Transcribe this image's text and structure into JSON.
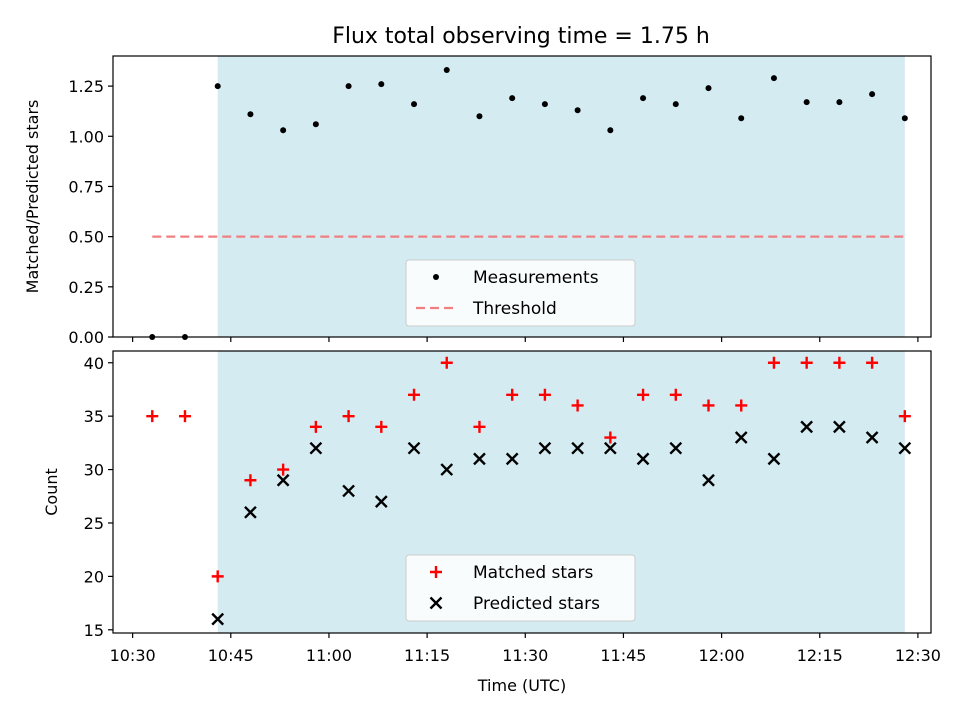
{
  "title": "Flux total observing time = 1.75 h",
  "colors": {
    "span": "#add8e6",
    "measurement": "#000000",
    "threshold": "#f08080",
    "matched": "#ff0000",
    "predicted": "#000000"
  },
  "chart_data": [
    {
      "type": "scatter",
      "ylabel": "Matched/Predicted stars",
      "ylim": [
        0,
        1.4
      ],
      "y_ticks": [
        "0.00",
        "0.25",
        "0.50",
        "0.75",
        "1.00",
        "1.25"
      ],
      "y_tick_values": [
        0,
        0.25,
        0.5,
        0.75,
        1.0,
        1.25
      ],
      "x_ticks": [
        "10:30",
        "10:45",
        "11:00",
        "11:15",
        "11:30",
        "11:45",
        "12:00",
        "12:15",
        "12:30"
      ],
      "x_tick_values": [
        "10:30",
        "10:45",
        "11:00",
        "11:15",
        "11:30",
        "11:45",
        "12:00",
        "12:15",
        "12:30"
      ],
      "xlim": [
        "10:27",
        "12:32"
      ],
      "grid": false,
      "legend_position": "lower center",
      "shaded_span": {
        "start": "10:43",
        "end": "12:28"
      },
      "series": [
        {
          "name": "Measurements",
          "marker": "dot",
          "x": [
            "10:33",
            "10:38",
            "10:43",
            "10:48",
            "10:53",
            "10:58",
            "11:03",
            "11:08",
            "11:13",
            "11:18",
            "11:23",
            "11:28",
            "11:33",
            "11:38",
            "11:43",
            "11:48",
            "11:53",
            "11:58",
            "12:03",
            "12:08",
            "12:13",
            "12:18",
            "12:23",
            "12:28"
          ],
          "y": [
            0.0,
            0.0,
            1.25,
            1.11,
            1.03,
            1.06,
            1.25,
            1.26,
            1.16,
            1.33,
            1.1,
            1.19,
            1.16,
            1.13,
            1.03,
            1.19,
            1.16,
            1.24,
            1.09,
            1.29,
            1.17,
            1.17,
            1.21,
            1.09
          ]
        },
        {
          "name": "Threshold",
          "marker": "dashed-line",
          "x": [
            "10:33",
            "12:28"
          ],
          "y": [
            0.5,
            0.5
          ]
        }
      ]
    },
    {
      "type": "scatter",
      "ylabel": "Count",
      "xlabel": "Time (UTC)",
      "ylim": [
        14.7,
        41.1
      ],
      "y_ticks": [
        "15",
        "20",
        "25",
        "30",
        "35",
        "40"
      ],
      "y_tick_values": [
        15,
        20,
        25,
        30,
        35,
        40
      ],
      "x_ticks": [
        "10:30",
        "10:45",
        "11:00",
        "11:15",
        "11:30",
        "11:45",
        "12:00",
        "12:15",
        "12:30"
      ],
      "x_tick_values": [
        "10:30",
        "10:45",
        "11:00",
        "11:15",
        "11:30",
        "11:45",
        "12:00",
        "12:15",
        "12:30"
      ],
      "xlim": [
        "10:27",
        "12:32"
      ],
      "grid": false,
      "legend_position": "lower center",
      "shaded_span": {
        "start": "10:43",
        "end": "12:28"
      },
      "series": [
        {
          "name": "Matched stars",
          "marker": "plus",
          "x": [
            "10:33",
            "10:38",
            "10:43",
            "10:48",
            "10:53",
            "10:58",
            "11:03",
            "11:08",
            "11:13",
            "11:18",
            "11:23",
            "11:28",
            "11:33",
            "11:38",
            "11:43",
            "11:48",
            "11:53",
            "11:58",
            "12:03",
            "12:08",
            "12:13",
            "12:18",
            "12:23",
            "12:28"
          ],
          "y": [
            35,
            35,
            20,
            29,
            30,
            34,
            35,
            34,
            37,
            40,
            34,
            37,
            37,
            36,
            33,
            37,
            37,
            36,
            36,
            40,
            40,
            40,
            40,
            35
          ]
        },
        {
          "name": "Predicted stars",
          "marker": "x",
          "x": [
            "10:43",
            "10:48",
            "10:53",
            "10:58",
            "11:03",
            "11:08",
            "11:13",
            "11:18",
            "11:23",
            "11:28",
            "11:33",
            "11:38",
            "11:43",
            "11:48",
            "11:53",
            "11:58",
            "12:03",
            "12:08",
            "12:13",
            "12:18",
            "12:23",
            "12:28"
          ],
          "y": [
            16,
            26,
            29,
            32,
            28,
            27,
            32,
            30,
            31,
            31,
            32,
            32,
            32,
            31,
            32,
            29,
            33,
            31,
            34,
            34,
            33,
            32
          ]
        }
      ]
    }
  ]
}
